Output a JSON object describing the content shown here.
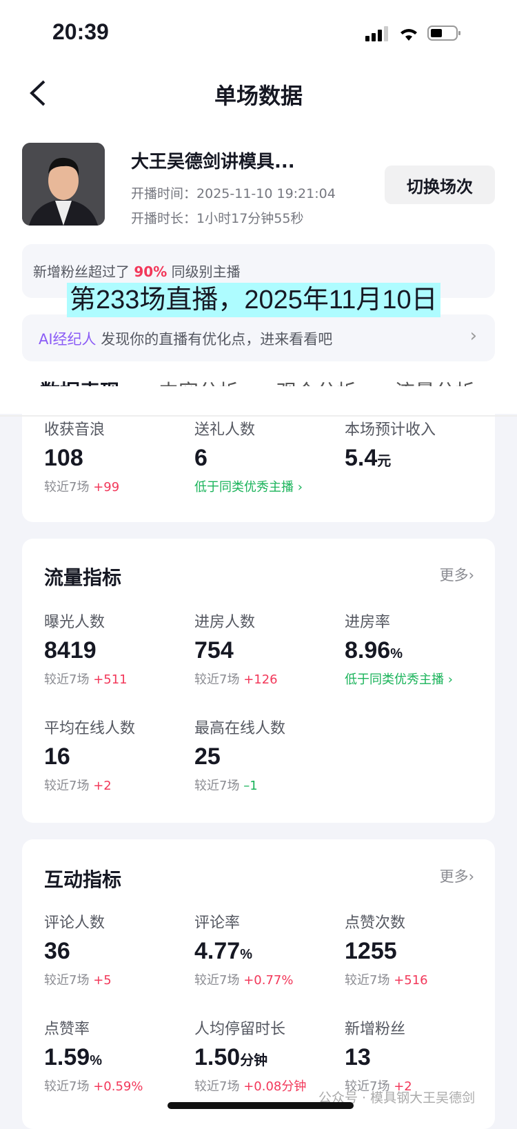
{
  "status": {
    "time": "20:39"
  },
  "nav": {
    "title": "单场数据"
  },
  "profile": {
    "name": "大王吴德剑讲模具...",
    "start_label": "开播时间：",
    "start": "2025-11-10 19:21:04",
    "dur_label": "开播时长：",
    "duration": "1小时17分钟55秒",
    "switch": "切换场次"
  },
  "fans_banner": {
    "pre": "新增粉丝超过了 ",
    "pct": "90%",
    "post": " 同级别主播"
  },
  "overlay": "第233场直播，2025年11月10日",
  "ai": {
    "brand": "AI经纪人",
    "text": " 发现你的直播有优化点，进来看看吧"
  },
  "tabs": [
    "数据表现",
    "内容分析",
    "观众分析",
    "流量分析"
  ],
  "colors": {
    "accent": "#f2385a",
    "positive_down": "#1ab35a",
    "ai": "#8b5cf6"
  },
  "card1": [
    {
      "label": "收获音浪",
      "value": "108",
      "unit": "",
      "cmp": "较近7场",
      "delta": "+99"
    },
    {
      "label": "送礼人数",
      "value": "6",
      "unit": "",
      "note": "低于同类优秀主播 ›"
    },
    {
      "label": "本场预计收入",
      "value": "5.4",
      "unit": "元"
    }
  ],
  "traffic": {
    "title": "流量指标",
    "more": "更多›",
    "items": [
      {
        "label": "曝光人数",
        "value": "8419",
        "unit": "",
        "cmp": "较近7场",
        "delta": "+511"
      },
      {
        "label": "进房人数",
        "value": "754",
        "unit": "",
        "cmp": "较近7场",
        "delta": "+126"
      },
      {
        "label": "进房率",
        "value": "8.96",
        "unit": "%",
        "note": "低于同类优秀主播 ›"
      },
      {
        "label": "平均在线人数",
        "value": "16",
        "unit": "",
        "cmp": "较近7场",
        "delta": "+2"
      },
      {
        "label": "最高在线人数",
        "value": "25",
        "unit": "",
        "cmp": "较近7场",
        "delta": "–1",
        "down": true
      }
    ]
  },
  "interact": {
    "title": "互动指标",
    "more": "更多›",
    "items": [
      {
        "label": "评论人数",
        "value": "36",
        "unit": "",
        "cmp": "较近7场",
        "delta": "+5"
      },
      {
        "label": "评论率",
        "value": "4.77",
        "unit": "%",
        "cmp": "较近7场",
        "delta": "+0.77%"
      },
      {
        "label": "点赞次数",
        "value": "1255",
        "unit": "",
        "cmp": "较近7场",
        "delta": "+516"
      },
      {
        "label": "点赞率",
        "value": "1.59",
        "unit": "%",
        "cmp": "较近7场",
        "delta": "+0.59%"
      },
      {
        "label": "人均停留时长",
        "value": "1.50",
        "unit": "分钟",
        "cmp": "较近7场",
        "delta": "+0.08分钟"
      },
      {
        "label": "新增粉丝",
        "value": "13",
        "unit": "",
        "cmp": "较近7场",
        "delta": "+2"
      }
    ]
  },
  "watermark": "公众号 · 模具钢大王吴德剑"
}
